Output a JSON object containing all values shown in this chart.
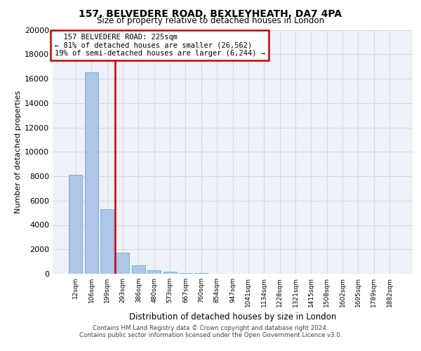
{
  "title_line1": "157, BELVEDERE ROAD, BEXLEYHEATH, DA7 4PA",
  "title_line2": "Size of property relative to detached houses in London",
  "xlabel": "Distribution of detached houses by size in London",
  "ylabel": "Number of detached properties",
  "bar_labels": [
    "12sqm",
    "106sqm",
    "199sqm",
    "293sqm",
    "386sqm",
    "480sqm",
    "573sqm",
    "667sqm",
    "760sqm",
    "854sqm",
    "947sqm",
    "1041sqm",
    "1134sqm",
    "1228sqm",
    "1321sqm",
    "1415sqm",
    "1508sqm",
    "1602sqm",
    "1695sqm",
    "1789sqm",
    "1882sqm"
  ],
  "bar_heights": [
    8100,
    16500,
    5300,
    1750,
    700,
    280,
    150,
    80,
    40,
    0,
    0,
    0,
    0,
    0,
    0,
    0,
    0,
    0,
    0,
    0,
    0
  ],
  "bar_color": "#aec6e8",
  "bar_edge_color": "#5a9fd4",
  "property_label": "157 BELVEDERE ROAD: 225sqm",
  "pct_smaller": 81,
  "num_smaller": "26,562",
  "pct_larger": 19,
  "num_larger": "6,244",
  "vline_color": "#cc0000",
  "ylim": [
    0,
    20000
  ],
  "yticks": [
    0,
    2000,
    4000,
    6000,
    8000,
    10000,
    12000,
    14000,
    16000,
    18000,
    20000
  ],
  "grid_color": "#d0d8e8",
  "bg_color": "#eef2f8",
  "footnote1": "Contains HM Land Registry data © Crown copyright and database right 2024.",
  "footnote2": "Contains public sector information licensed under the Open Government Licence v3.0."
}
